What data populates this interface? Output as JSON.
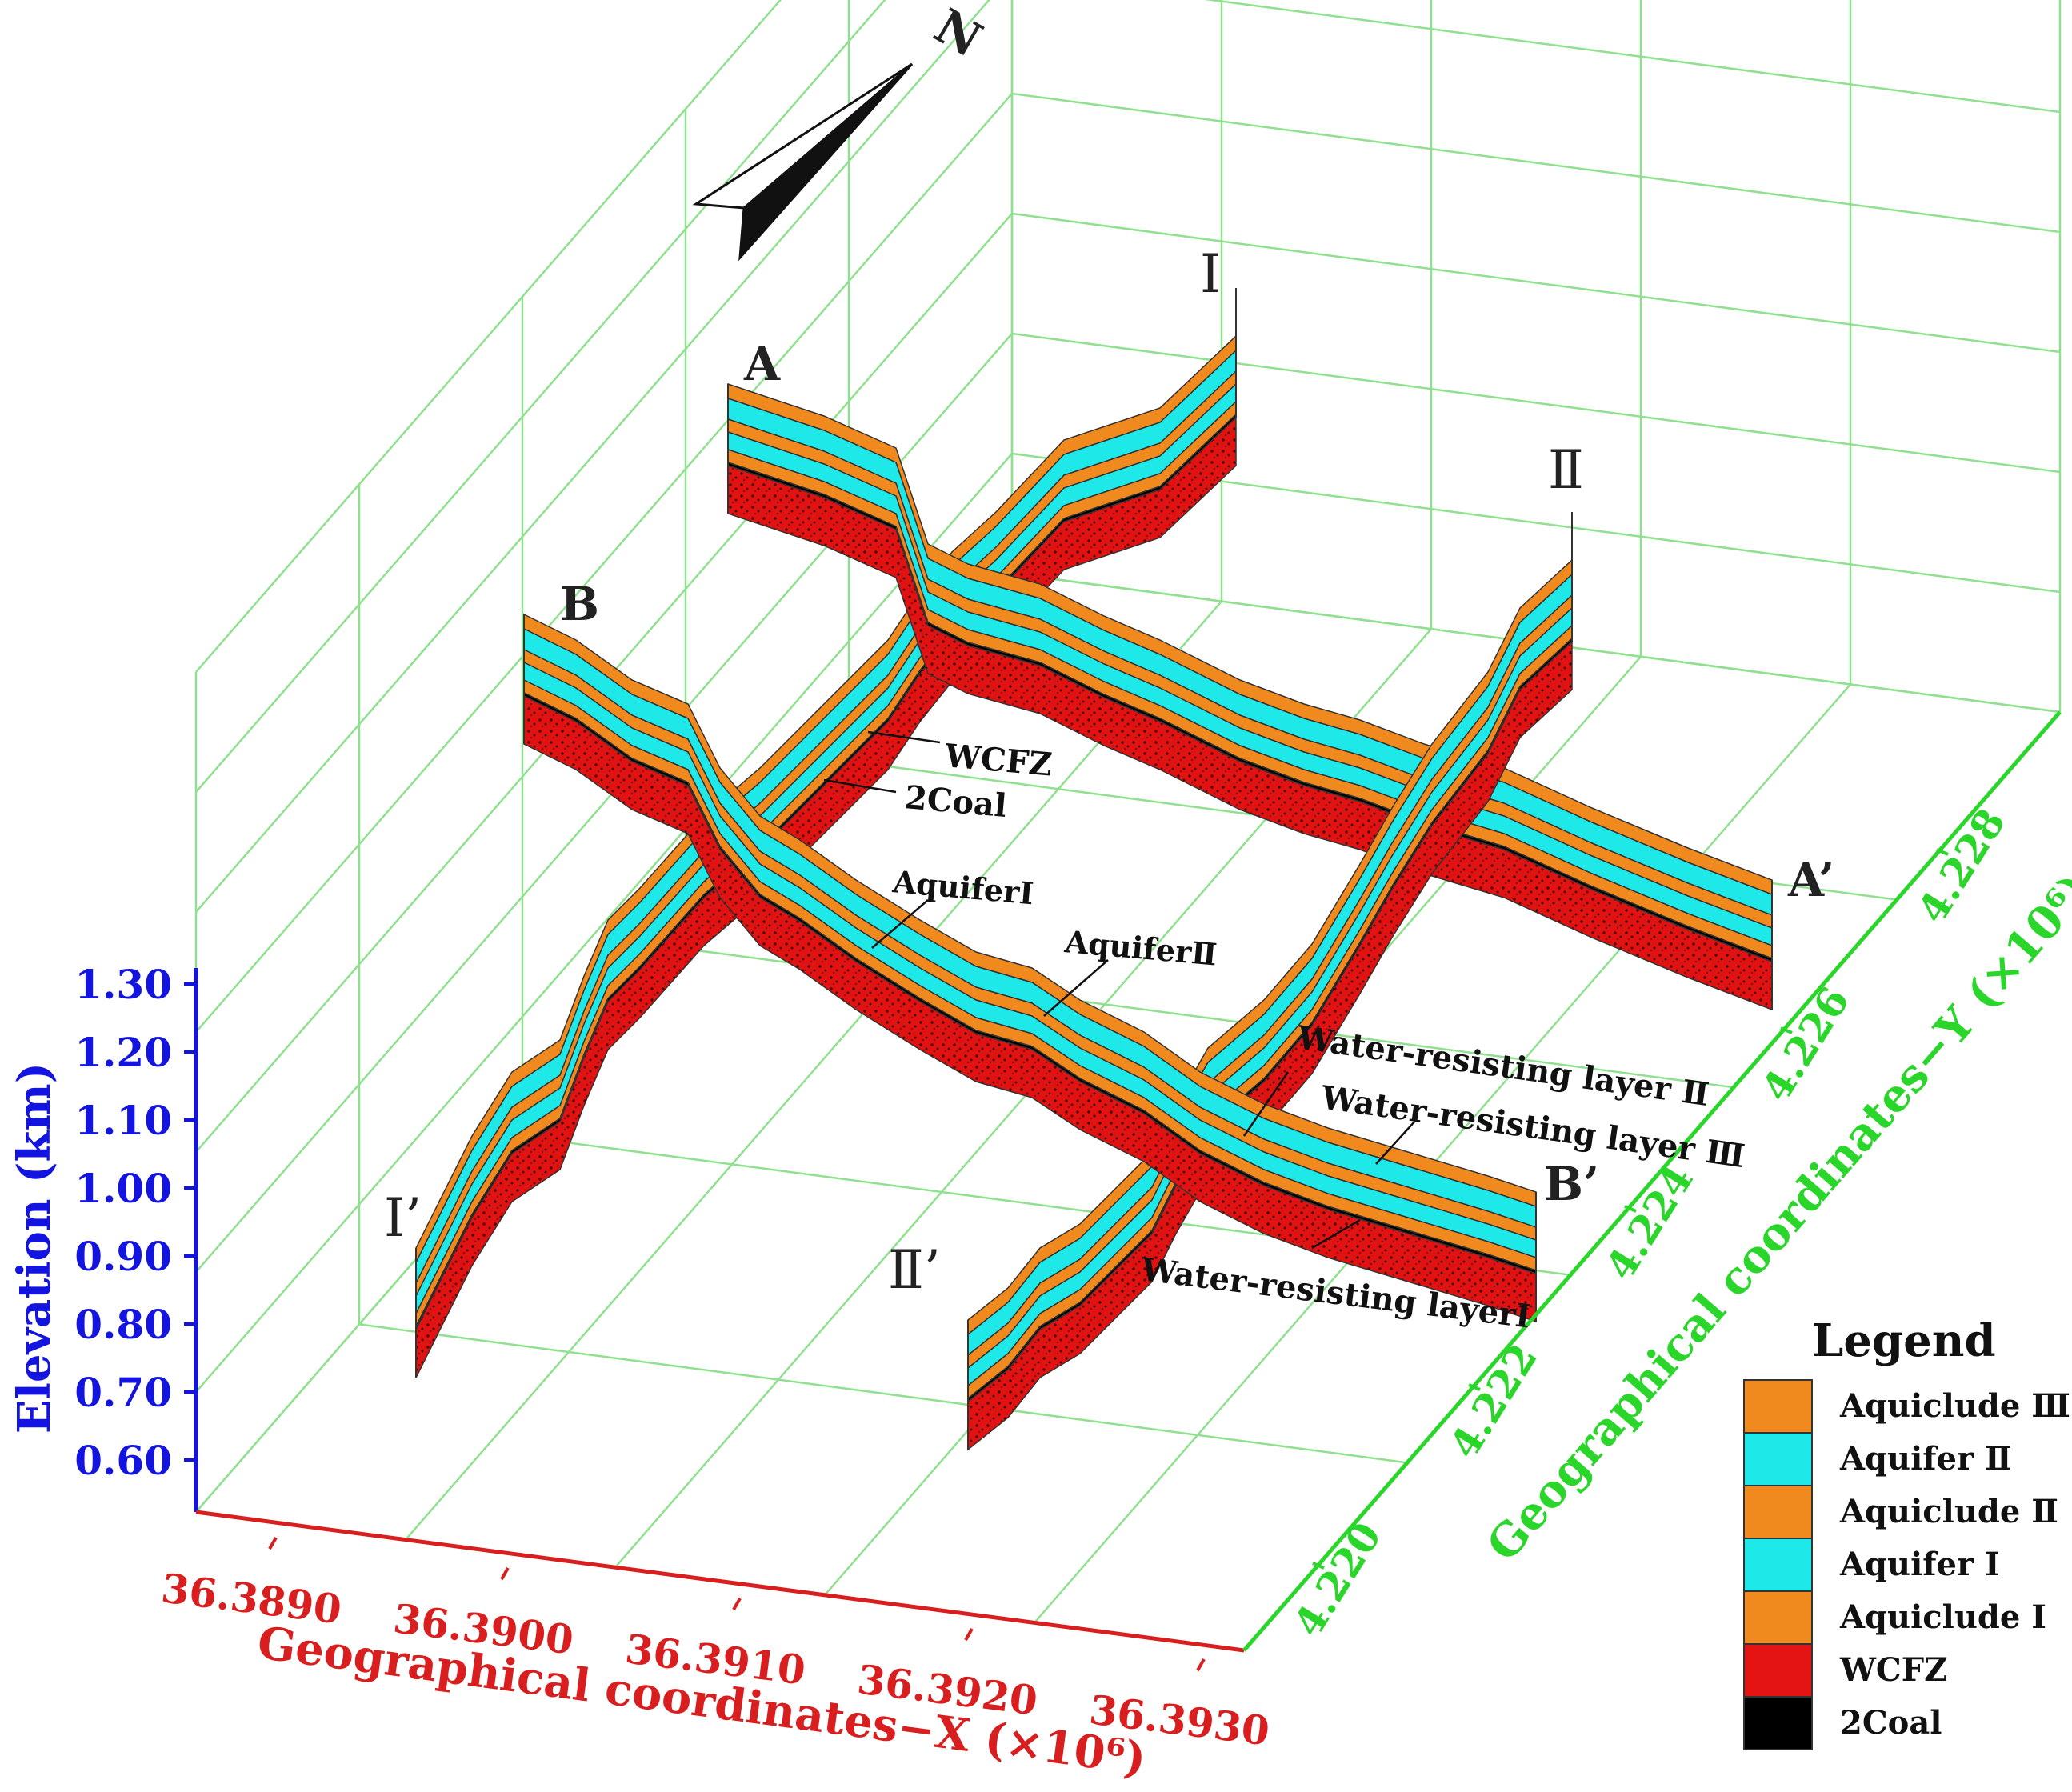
{
  "north_label": "N",
  "colors": {
    "grid": "#8fe08f",
    "elevation_axis": "#1414e0",
    "x_axis": "#d81e1e",
    "y_axis": "#2ad62a",
    "aquiclude": "#f08a1e",
    "aquifer": "#1fe8e8",
    "wcfz": "#e41414",
    "coal": "#000000"
  },
  "axes": {
    "elevation": {
      "label": "Elevation (km)",
      "ticks": [
        "1.30",
        "1.20",
        "1.10",
        "1.00",
        "0.90",
        "0.80",
        "0.70",
        "0.60"
      ]
    },
    "x": {
      "label": "Geographical coordinates−X (×10⁶)",
      "ticks": [
        "36.3890",
        "36.3900",
        "36.3910",
        "36.3920",
        "36.3930"
      ]
    },
    "y": {
      "label": "Geographical coordinates−Y (×10⁶)",
      "ticks": [
        "4.220",
        "4.222",
        "4.224",
        "4.226",
        "4.228"
      ]
    }
  },
  "sections": {
    "A": "A",
    "A_prime": "A’",
    "B": "B",
    "B_prime": "B’",
    "I": "Ⅰ",
    "I_prime": "Ⅰ’",
    "II": "Ⅱ",
    "II_prime": "Ⅱ’"
  },
  "annotations": {
    "wcfz": "WCFZ",
    "coal": "2Coal",
    "aquifer1": "AquiferⅠ",
    "aquifer2": "AquiferⅡ",
    "wrl2": "Water-resisting layer Ⅱ",
    "wrl3": "Water-resisting layer Ⅲ",
    "wrl1": "Water-resisting layerⅠ"
  },
  "legend": {
    "title": "Legend",
    "items": [
      {
        "label": "Aquiclude Ⅲ",
        "color": "#f08a1e"
      },
      {
        "label": "Aquifer Ⅱ",
        "color": "#1fe8e8"
      },
      {
        "label": "Aquiclude Ⅱ",
        "color": "#f08a1e"
      },
      {
        "label": "Aquifer Ⅰ",
        "color": "#1fe8e8"
      },
      {
        "label": "Aquiclude Ⅰ",
        "color": "#f08a1e"
      },
      {
        "label": "WCFZ",
        "color": "#e41414"
      },
      {
        "label": "2Coal",
        "color": "#000000"
      }
    ]
  }
}
